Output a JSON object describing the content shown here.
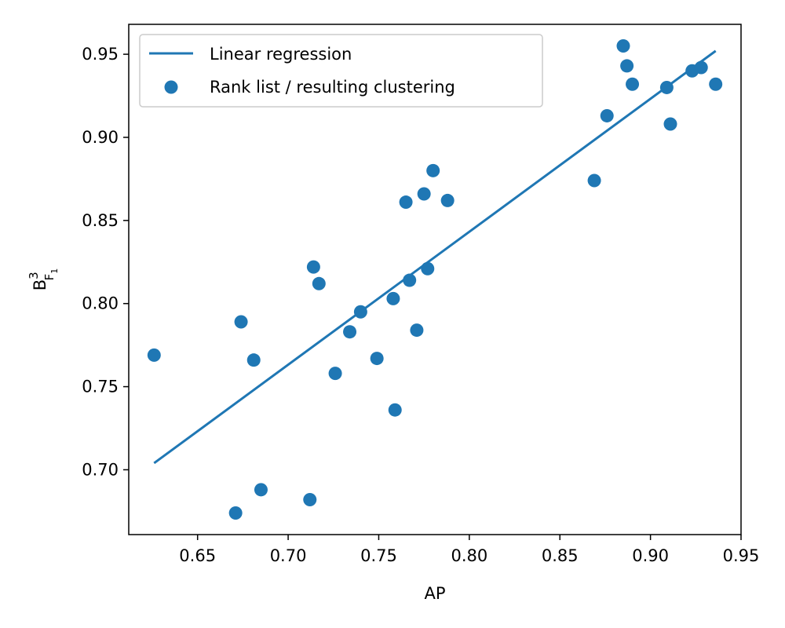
{
  "chart_data": {
    "type": "scatter",
    "xlabel": "AP",
    "ylabel": {
      "base": "B",
      "sup": "3",
      "sub": "F",
      "subsub": "1"
    },
    "xlim": [
      0.612,
      0.95
    ],
    "ylim": [
      0.661,
      0.968
    ],
    "xticks": [
      0.65,
      0.7,
      0.75,
      0.8,
      0.85,
      0.9,
      0.95
    ],
    "xtick_labels": [
      "0.65",
      "0.70",
      "0.75",
      "0.80",
      "0.85",
      "0.90",
      "0.95"
    ],
    "yticks": [
      0.7,
      0.75,
      0.8,
      0.85,
      0.9,
      0.95
    ],
    "ytick_labels": [
      "0.70",
      "0.75",
      "0.80",
      "0.85",
      "0.90",
      "0.95"
    ],
    "grid": false,
    "legend_position": "top-left",
    "color": "#1f77b4",
    "series": [
      {
        "name": "Linear regression",
        "kind": "line",
        "x": [
          0.626,
          0.936
        ],
        "y": [
          0.704,
          0.952
        ]
      },
      {
        "name": "Rank list / resulting clustering",
        "kind": "scatter",
        "points": [
          [
            0.626,
            0.769
          ],
          [
            0.671,
            0.674
          ],
          [
            0.674,
            0.789
          ],
          [
            0.681,
            0.766
          ],
          [
            0.685,
            0.688
          ],
          [
            0.712,
            0.682
          ],
          [
            0.714,
            0.822
          ],
          [
            0.717,
            0.812
          ],
          [
            0.726,
            0.758
          ],
          [
            0.734,
            0.783
          ],
          [
            0.74,
            0.795
          ],
          [
            0.749,
            0.767
          ],
          [
            0.758,
            0.803
          ],
          [
            0.759,
            0.736
          ],
          [
            0.765,
            0.861
          ],
          [
            0.767,
            0.814
          ],
          [
            0.771,
            0.784
          ],
          [
            0.775,
            0.866
          ],
          [
            0.777,
            0.821
          ],
          [
            0.78,
            0.88
          ],
          [
            0.788,
            0.862
          ],
          [
            0.869,
            0.874
          ],
          [
            0.876,
            0.913
          ],
          [
            0.885,
            0.955
          ],
          [
            0.887,
            0.943
          ],
          [
            0.89,
            0.932
          ],
          [
            0.909,
            0.93
          ],
          [
            0.911,
            0.908
          ],
          [
            0.923,
            0.94
          ],
          [
            0.928,
            0.942
          ],
          [
            0.936,
            0.932
          ]
        ]
      }
    ]
  }
}
